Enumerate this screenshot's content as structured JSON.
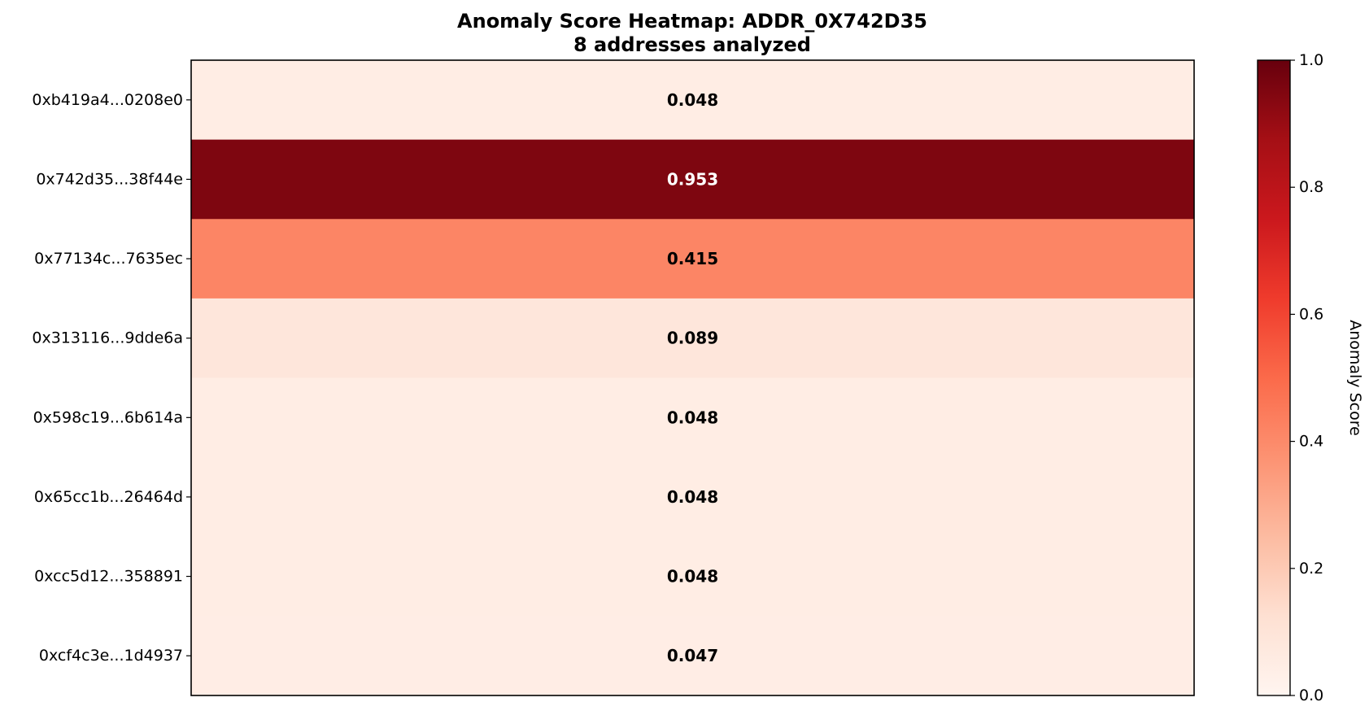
{
  "chart_data": {
    "type": "heatmap",
    "title": "Anomaly Score Heatmap: ADDR_0X742D35",
    "subtitle": "8 addresses analyzed",
    "rows": [
      "0xb419a4...0208e0",
      "0x742d35...38f44e",
      "0x77134c...7635ec",
      "0x313116...9dde6a",
      "0x598c19...6b614a",
      "0x65cc1b...26464d",
      "0xcc5d12...358891",
      "0xcf4c3e...1d4937"
    ],
    "values": [
      0.048,
      0.953,
      0.415,
      0.089,
      0.048,
      0.048,
      0.048,
      0.047
    ],
    "value_labels": [
      "0.048",
      "0.953",
      "0.415",
      "0.089",
      "0.048",
      "0.048",
      "0.048",
      "0.047"
    ],
    "colormap": "Reds",
    "colormap_stops": [
      "#fff5f0",
      "#fee0d2",
      "#fcbba1",
      "#fc9272",
      "#fb6a4a",
      "#ef3b2c",
      "#cb181d",
      "#a50f15",
      "#67000d"
    ],
    "vmin": 0.0,
    "vmax": 1.0,
    "colorbar_label": "Anomaly Score",
    "colorbar_ticks": [
      0.0,
      0.2,
      0.4,
      0.6,
      0.8,
      1.0
    ],
    "colorbar_tick_labels": [
      "0.0",
      "0.2",
      "0.4",
      "0.6",
      "0.8",
      "1.0"
    ],
    "x_ticks": [],
    "grid": false,
    "colorbar_position": "right"
  }
}
